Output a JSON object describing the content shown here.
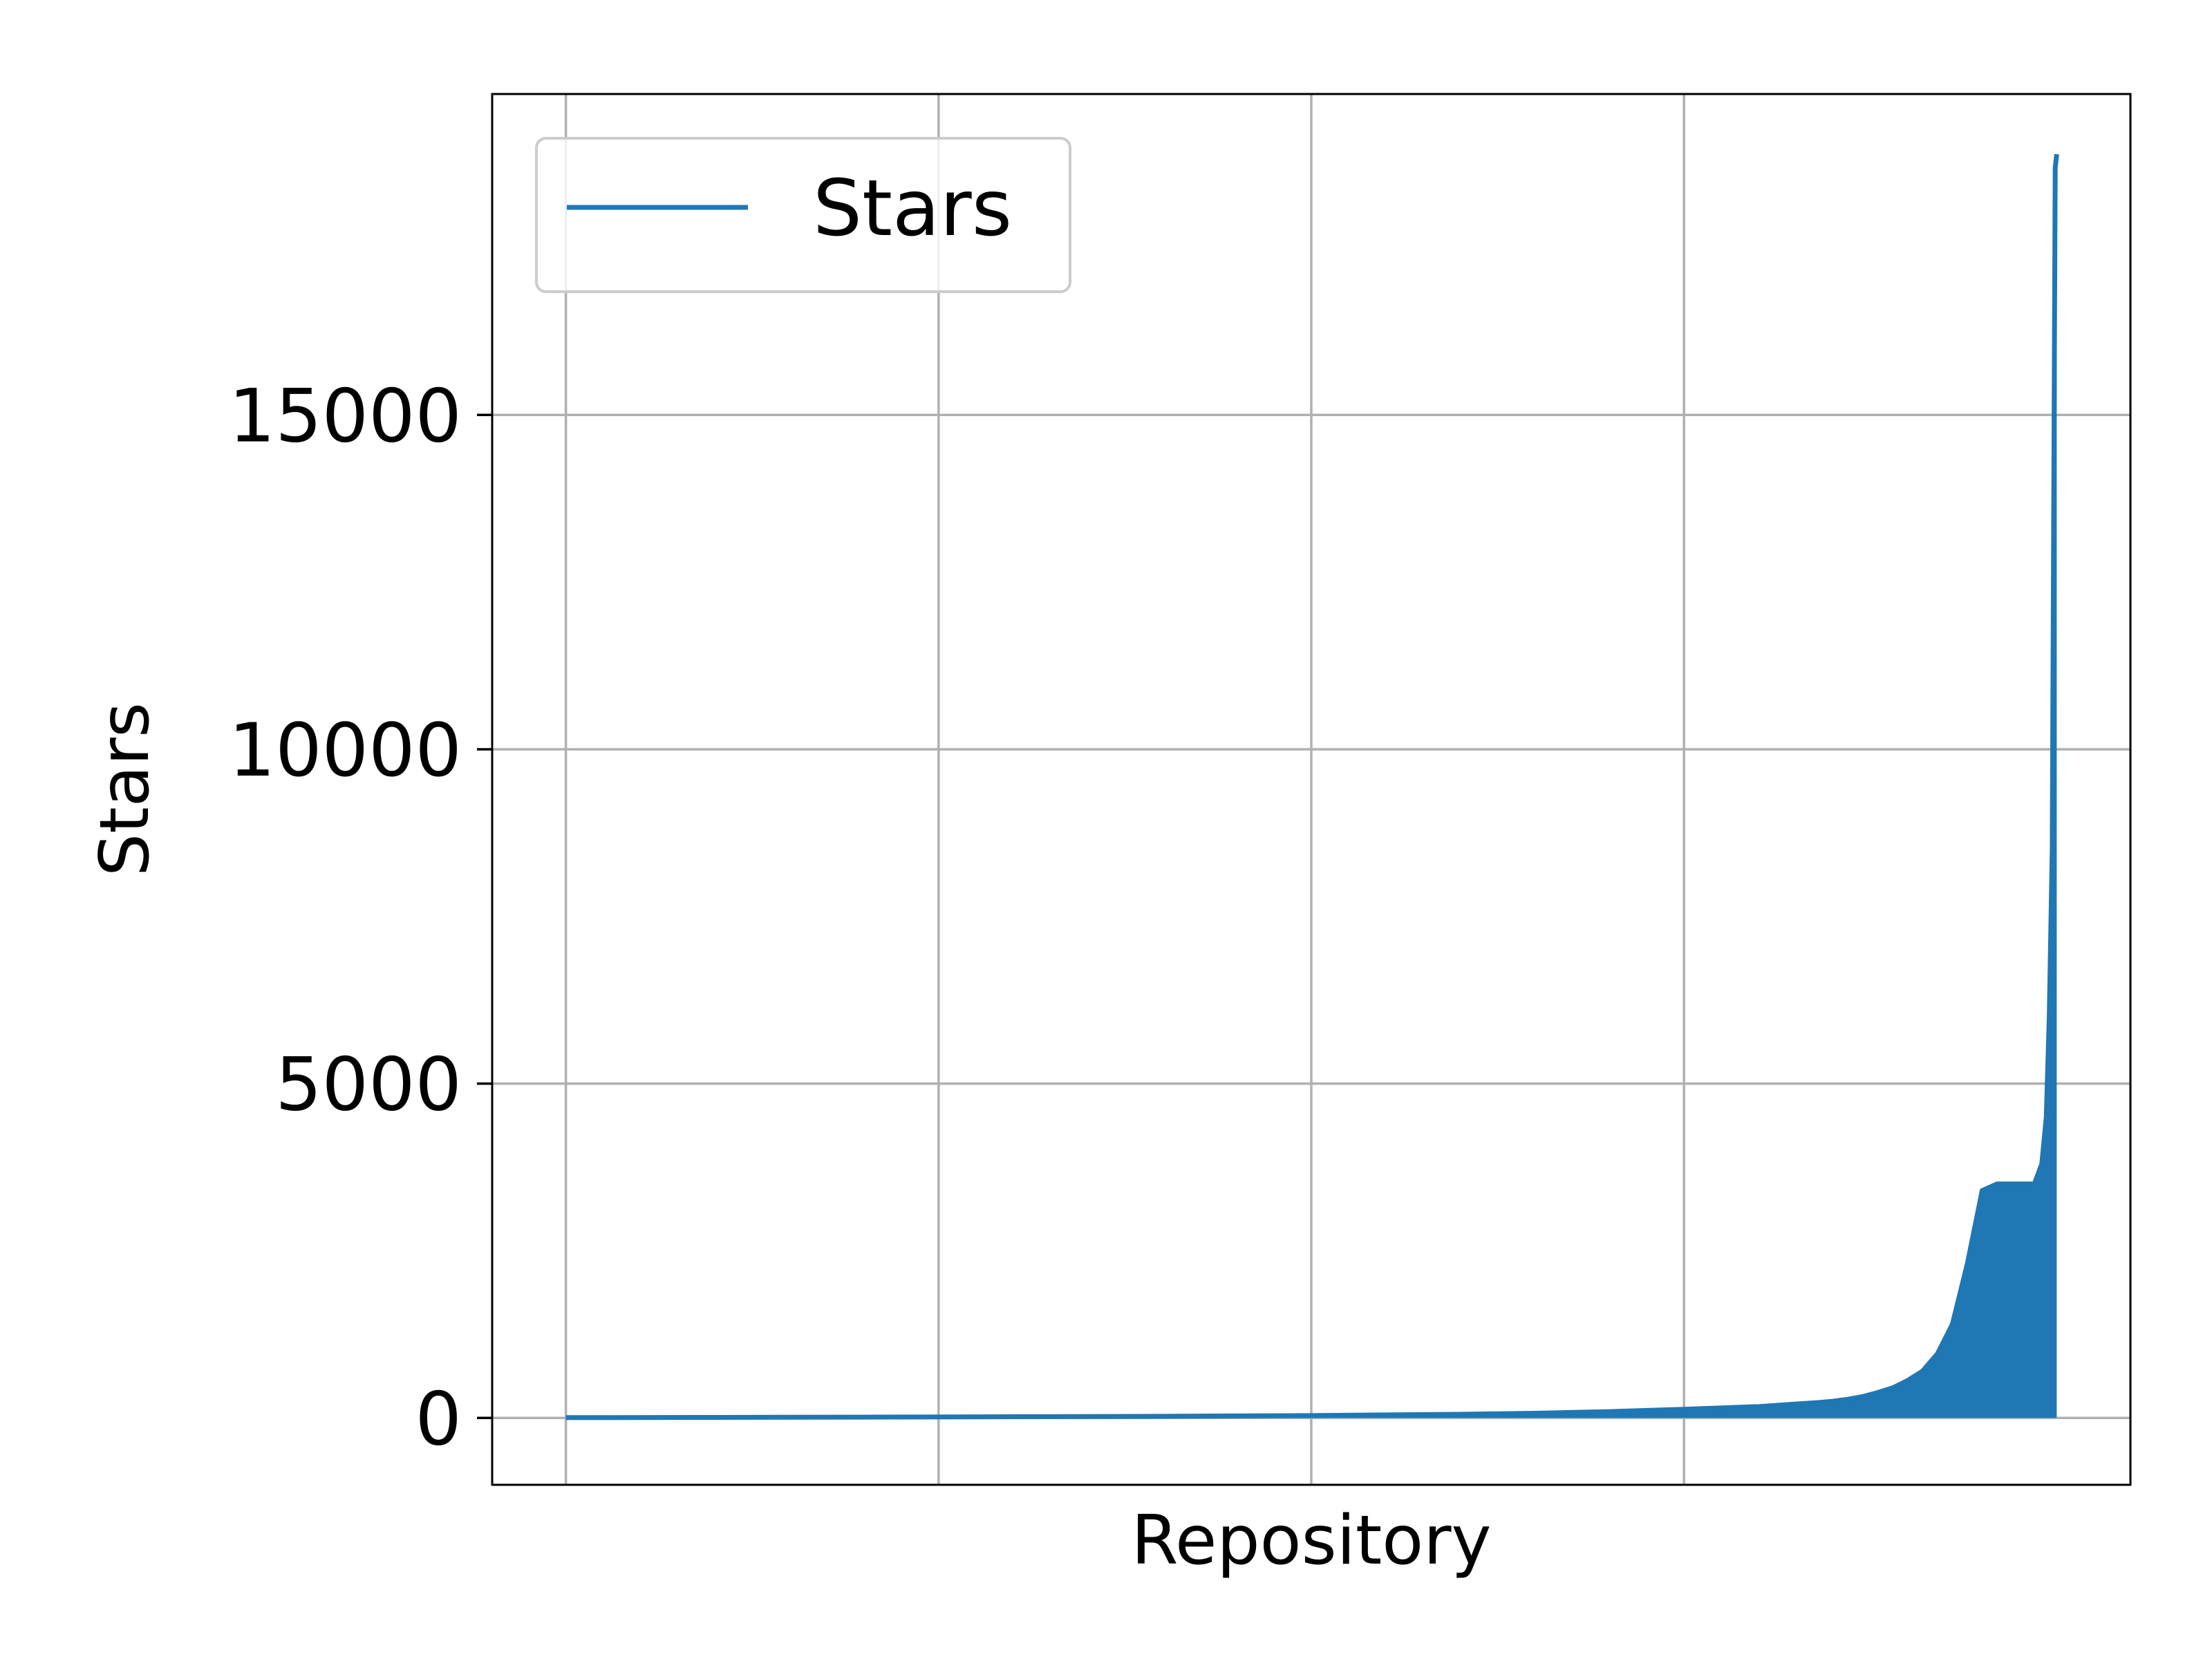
{
  "chart_data": {
    "type": "area",
    "title": "",
    "xlabel": "Repository",
    "ylabel": "Stars",
    "x_tick_labels": false,
    "xlim": [
      0,
      1000
    ],
    "ylim": [
      -1000,
      19800
    ],
    "yticks": [
      0,
      5000,
      10000,
      15000
    ],
    "ytick_labels": [
      "0",
      "5000",
      "10000",
      "15000"
    ],
    "grid": true,
    "legend": {
      "position": "top-left"
    },
    "series": [
      {
        "name": "Stars",
        "color": "#1f77b4",
        "x": [
          0,
          100,
          200,
          300,
          400,
          500,
          600,
          650,
          700,
          750,
          800,
          820,
          840,
          850,
          860,
          870,
          880,
          890,
          900,
          910,
          920,
          930,
          940,
          950,
          960,
          970,
          980,
          985,
          990,
          993,
          995,
          997,
          999,
          1000
        ],
        "values": [
          5,
          8,
          12,
          18,
          25,
          35,
          55,
          70,
          95,
          130,
          170,
          200,
          230,
          250,
          280,
          320,
          380,
          450,
          560,
          700,
          960,
          1400,
          2300,
          3400,
          3500,
          3500,
          3500,
          3500,
          3800,
          4500,
          6000,
          8500,
          18700,
          18900
        ]
      }
    ]
  }
}
